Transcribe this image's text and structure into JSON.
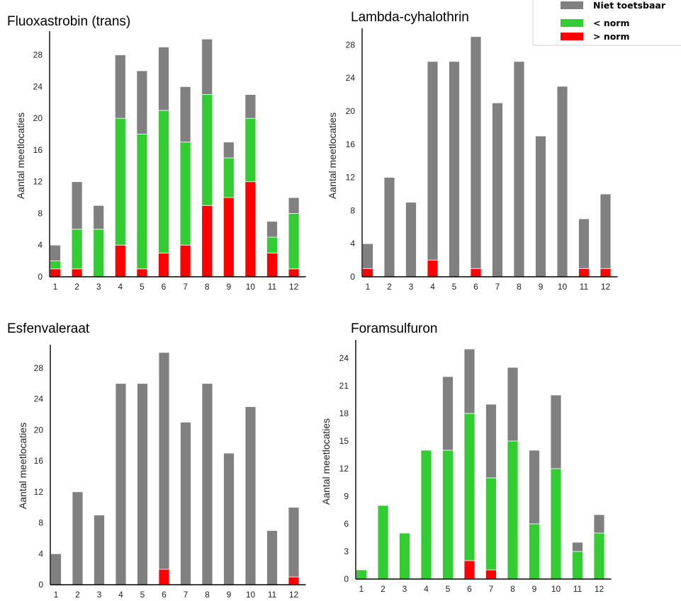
{
  "colors": {
    "niet": "#808080",
    "lt": "#33cc33",
    "gt": "#ff0000"
  },
  "legend": {
    "niet_label": "Niet toetsbaar",
    "lt_label": "< norm",
    "gt_label": "> norm"
  },
  "chart_data": [
    {
      "type": "bar",
      "stacked": true,
      "title": "Fluoxastrobin (trans)",
      "ylabel": "Aantal meetlocaties",
      "categories": [
        "1",
        "2",
        "3",
        "4",
        "5",
        "6",
        "7",
        "8",
        "9",
        "10",
        "11",
        "12"
      ],
      "yticks": [
        "0",
        "4",
        "8",
        "12",
        "16",
        "20",
        "24",
        "28"
      ],
      "ylim": [
        0,
        31
      ],
      "series": [
        {
          "name": "> norm",
          "values": [
            1,
            1,
            0,
            4,
            1,
            3,
            4,
            9,
            10,
            12,
            3,
            1
          ]
        },
        {
          "name": "< norm",
          "values": [
            1,
            5,
            6,
            16,
            17,
            18,
            13,
            14,
            5,
            8,
            2,
            7
          ]
        },
        {
          "name": "Niet toetsbaar",
          "values": [
            2,
            6,
            3,
            8,
            8,
            8,
            7,
            7,
            2,
            3,
            2,
            2
          ]
        }
      ]
    },
    {
      "type": "bar",
      "stacked": true,
      "title": "Lambda-cyhalothrin",
      "ylabel": "Aantal meetlocaties",
      "categories": [
        "1",
        "2",
        "3",
        "4",
        "5",
        "6",
        "7",
        "8",
        "9",
        "10",
        "11",
        "12"
      ],
      "yticks": [
        "0",
        "4",
        "8",
        "12",
        "16",
        "20",
        "24",
        "28"
      ],
      "ylim": [
        0,
        30
      ],
      "series": [
        {
          "name": "> norm",
          "values": [
            1,
            0,
            0,
            2,
            0,
            1,
            0,
            0,
            0,
            0,
            1,
            1
          ]
        },
        {
          "name": "< norm",
          "values": [
            0,
            0,
            0,
            0,
            0,
            0,
            0,
            0,
            0,
            0,
            0,
            0
          ]
        },
        {
          "name": "Niet toetsbaar",
          "values": [
            3,
            12,
            9,
            24,
            26,
            28,
            21,
            26,
            17,
            23,
            6,
            9
          ]
        }
      ]
    },
    {
      "type": "bar",
      "stacked": true,
      "title": "Esfenvaleraat",
      "ylabel": "Aantal meetlocaties",
      "categories": [
        "1",
        "2",
        "3",
        "4",
        "5",
        "6",
        "7",
        "8",
        "9",
        "10",
        "11",
        "12"
      ],
      "yticks": [
        "0",
        "4",
        "8",
        "12",
        "16",
        "20",
        "24",
        "28"
      ],
      "ylim": [
        0,
        31
      ],
      "series": [
        {
          "name": "> norm",
          "values": [
            0,
            0,
            0,
            0,
            0,
            2,
            0,
            0,
            0,
            0,
            0,
            1
          ]
        },
        {
          "name": "< norm",
          "values": [
            0,
            0,
            0,
            0,
            0,
            0,
            0,
            0,
            0,
            0,
            0,
            0
          ]
        },
        {
          "name": "Niet toetsbaar",
          "values": [
            4,
            12,
            9,
            26,
            26,
            28,
            21,
            26,
            17,
            23,
            7,
            9
          ]
        }
      ]
    },
    {
      "type": "bar",
      "stacked": true,
      "title": "Foramsulfuron",
      "ylabel": "Aantal meetlocaties",
      "categories": [
        "1",
        "2",
        "3",
        "4",
        "5",
        "6",
        "7",
        "8",
        "9",
        "10",
        "11",
        "12"
      ],
      "yticks": [
        "0",
        "3",
        "6",
        "9",
        "12",
        "15",
        "18",
        "21",
        "24"
      ],
      "ylim": [
        0,
        26
      ],
      "series": [
        {
          "name": "> norm",
          "values": [
            0,
            0,
            0,
            0,
            0,
            2,
            1,
            0,
            0,
            0,
            0,
            0
          ]
        },
        {
          "name": "< norm",
          "values": [
            1,
            8,
            5,
            14,
            14,
            16,
            10,
            15,
            6,
            12,
            3,
            5
          ]
        },
        {
          "name": "Niet toetsbaar",
          "values": [
            0,
            0,
            0,
            0,
            8,
            7,
            8,
            8,
            8,
            8,
            1,
            2
          ]
        }
      ]
    }
  ]
}
